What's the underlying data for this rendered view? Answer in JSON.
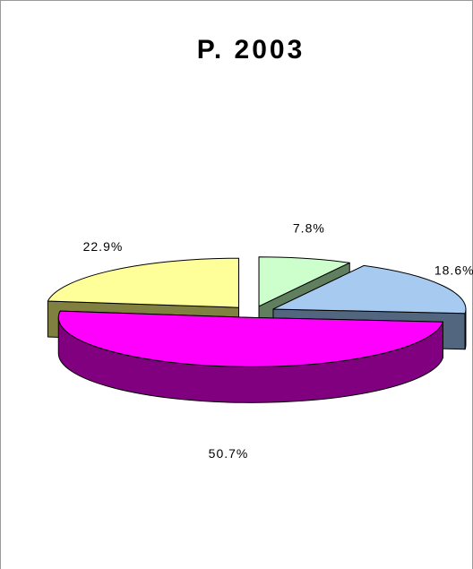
{
  "chart_data": {
    "type": "pie3d",
    "title": "P. 2003",
    "values": [
      7.8,
      18.6,
      50.7,
      22.9
    ],
    "value_labels": [
      "7.8%",
      "18.6%",
      "50.7%",
      "22.9%"
    ],
    "colors": [
      "#ccffcc",
      "#a6caf0",
      "#ff00ff",
      "#ffff99"
    ],
    "side_colors": [
      "#5f7f5f",
      "#52667f",
      "#800080",
      "#808040"
    ],
    "start_angle": -90,
    "exploded": true
  }
}
